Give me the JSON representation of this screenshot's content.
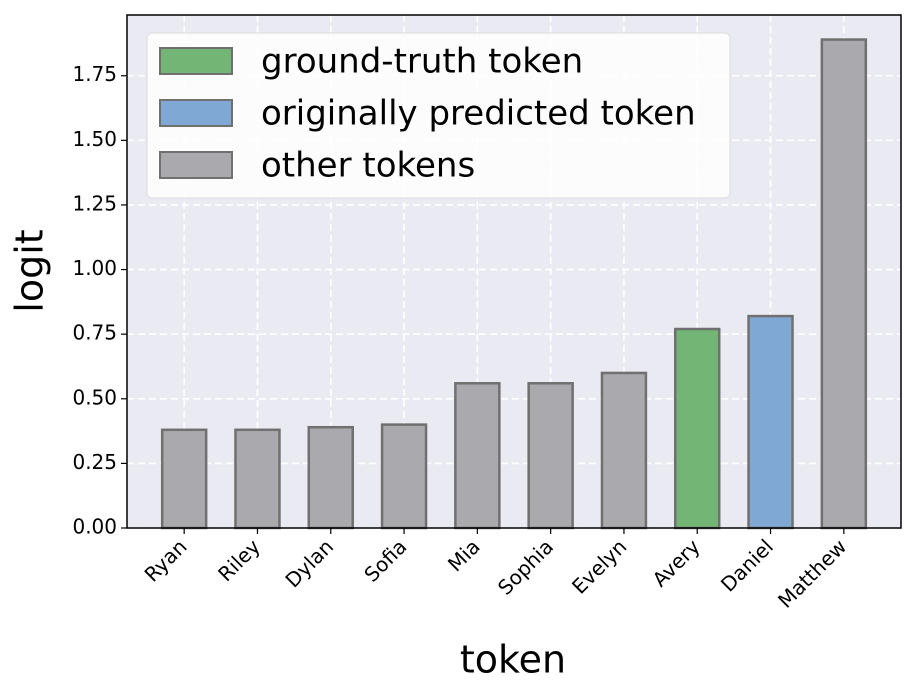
{
  "chart_data": {
    "type": "bar",
    "x_label": "token",
    "y_label": "logit",
    "categories": [
      "Ryan",
      "Riley",
      "Dylan",
      "Sofia",
      "Mia",
      "Sophia",
      "Evelyn",
      "Avery",
      "Daniel",
      "Matthew"
    ],
    "values": [
      0.38,
      0.38,
      0.39,
      0.4,
      0.56,
      0.56,
      0.6,
      0.77,
      0.82,
      1.89
    ],
    "colors": [
      "#a9a9ae",
      "#a9a9ae",
      "#a9a9ae",
      "#a9a9ae",
      "#a9a9ae",
      "#a9a9ae",
      "#a9a9ae",
      "#72b574",
      "#7fa8d4",
      "#a9a9ae"
    ],
    "legend": [
      {
        "name": "ground-truth token",
        "color": "#72b574"
      },
      {
        "name": "originally predicted token",
        "color": "#7fa8d4"
      },
      {
        "name": "other tokens",
        "color": "#a9a9ae"
      }
    ],
    "legend_position": "upper left",
    "ylim": [
      0,
      1.985
    ],
    "yticks": [
      {
        "value": 0,
        "label": "0.00"
      },
      {
        "value": 0.25,
        "label": "0.25"
      },
      {
        "value": 0.5,
        "label": "0.50"
      },
      {
        "value": 0.75,
        "label": "0.75"
      },
      {
        "value": 1,
        "label": "1.00"
      },
      {
        "value": 1.25,
        "label": "1.25"
      },
      {
        "value": 1.5,
        "label": "1.50"
      },
      {
        "value": 1.75,
        "label": "1.75"
      }
    ],
    "grid": true
  }
}
